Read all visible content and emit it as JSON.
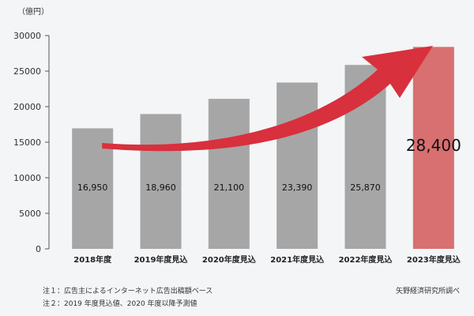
{
  "chart_data": {
    "type": "bar",
    "unit_label": "（億円）",
    "categories": [
      "2018年度",
      "2019年度見込",
      "2020年度見込",
      "2021年度見込",
      "2022年度見込",
      "2023年度見込"
    ],
    "values": [
      16950,
      18960,
      21100,
      23390,
      25870,
      28400
    ],
    "value_labels": [
      "16,950",
      "18,960",
      "21,100",
      "23,390",
      "25,870",
      "28,400"
    ],
    "yticks": [
      0,
      5000,
      10000,
      15000,
      20000,
      25000,
      30000
    ],
    "ylim": [
      0,
      30000
    ],
    "colors": {
      "bar": "#a6a6a6",
      "highlight_bar": "#d86f70",
      "arrow": "#d8303d"
    },
    "highlight_index": 5,
    "grid": false
  },
  "notes": {
    "note1": "注１：広告主によるインターネット広告出稿額ベース",
    "note2": "注２：2019 年度見込値、2020 年度以降予測値",
    "source": "矢野経済研究所調べ"
  }
}
